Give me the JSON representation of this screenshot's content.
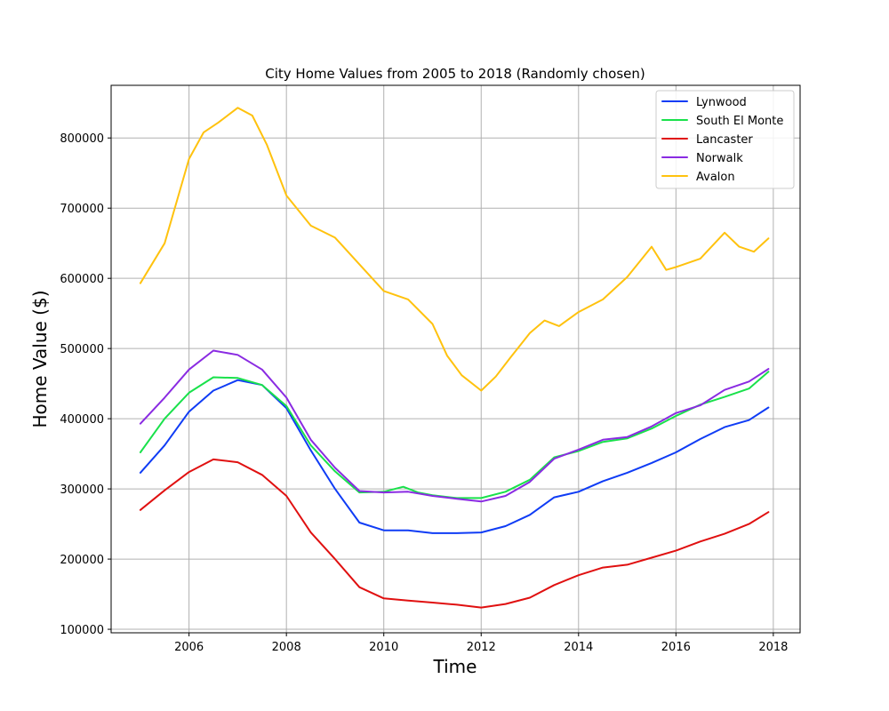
{
  "chart_data": {
    "type": "line",
    "title": "City Home Values from 2005 to 2018 (Randomly chosen)",
    "xlabel": "Time",
    "ylabel": "Home Value ($)",
    "xlim": [
      2004.4,
      2018.55
    ],
    "ylim": [
      95000,
      875000
    ],
    "xticks": [
      2006,
      2008,
      2010,
      2012,
      2014,
      2016,
      2018
    ],
    "xtick_labels": [
      "2006",
      "2008",
      "2010",
      "2012",
      "2014",
      "2016",
      "2018"
    ],
    "yticks": [
      100000,
      200000,
      300000,
      400000,
      500000,
      600000,
      700000,
      800000
    ],
    "ytick_labels": [
      "100000",
      "200000",
      "300000",
      "400000",
      "500000",
      "600000",
      "700000",
      "800000"
    ],
    "grid": true,
    "legend_position": "top-right",
    "series": [
      {
        "name": "Lynwood",
        "color": "#0f3cf5",
        "points": [
          [
            2005.0,
            323000
          ],
          [
            2005.5,
            362000
          ],
          [
            2006.0,
            410000
          ],
          [
            2006.5,
            440000
          ],
          [
            2007.0,
            455000
          ],
          [
            2007.5,
            448000
          ],
          [
            2008.0,
            415000
          ],
          [
            2008.5,
            355000
          ],
          [
            2009.0,
            300000
          ],
          [
            2009.5,
            252000
          ],
          [
            2010.0,
            241000
          ],
          [
            2010.5,
            241000
          ],
          [
            2011.0,
            237000
          ],
          [
            2011.5,
            237000
          ],
          [
            2012.0,
            238000
          ],
          [
            2012.5,
            247000
          ],
          [
            2013.0,
            263000
          ],
          [
            2013.5,
            288000
          ],
          [
            2014.0,
            296000
          ],
          [
            2014.5,
            311000
          ],
          [
            2015.0,
            323000
          ],
          [
            2015.5,
            337000
          ],
          [
            2016.0,
            352000
          ],
          [
            2016.5,
            371000
          ],
          [
            2017.0,
            388000
          ],
          [
            2017.5,
            398000
          ],
          [
            2017.9,
            416000
          ]
        ]
      },
      {
        "name": "South El Monte",
        "color": "#19e14b",
        "points": [
          [
            2005.0,
            352000
          ],
          [
            2005.5,
            400000
          ],
          [
            2006.0,
            437000
          ],
          [
            2006.5,
            459000
          ],
          [
            2007.0,
            458000
          ],
          [
            2007.5,
            448000
          ],
          [
            2008.0,
            418000
          ],
          [
            2008.5,
            362000
          ],
          [
            2009.0,
            325000
          ],
          [
            2009.5,
            295000
          ],
          [
            2010.0,
            296000
          ],
          [
            2010.4,
            303000
          ],
          [
            2010.7,
            295000
          ],
          [
            2011.0,
            291000
          ],
          [
            2011.5,
            287000
          ],
          [
            2012.0,
            287000
          ],
          [
            2012.5,
            296000
          ],
          [
            2013.0,
            313000
          ],
          [
            2013.5,
            345000
          ],
          [
            2014.0,
            354000
          ],
          [
            2014.5,
            367000
          ],
          [
            2015.0,
            372000
          ],
          [
            2015.5,
            386000
          ],
          [
            2016.0,
            404000
          ],
          [
            2016.5,
            420000
          ],
          [
            2017.0,
            431000
          ],
          [
            2017.5,
            443000
          ],
          [
            2017.9,
            467000
          ]
        ]
      },
      {
        "name": "Lancaster",
        "color": "#e01010",
        "points": [
          [
            2005.0,
            270000
          ],
          [
            2005.5,
            298000
          ],
          [
            2006.0,
            324000
          ],
          [
            2006.5,
            342000
          ],
          [
            2007.0,
            338000
          ],
          [
            2007.5,
            320000
          ],
          [
            2008.0,
            290000
          ],
          [
            2008.5,
            238000
          ],
          [
            2009.0,
            200000
          ],
          [
            2009.5,
            160000
          ],
          [
            2010.0,
            144000
          ],
          [
            2010.5,
            141000
          ],
          [
            2011.0,
            138000
          ],
          [
            2011.5,
            135000
          ],
          [
            2012.0,
            131000
          ],
          [
            2012.5,
            136000
          ],
          [
            2013.0,
            145000
          ],
          [
            2013.5,
            163000
          ],
          [
            2014.0,
            177000
          ],
          [
            2014.5,
            188000
          ],
          [
            2015.0,
            192000
          ],
          [
            2015.5,
            202000
          ],
          [
            2016.0,
            212000
          ],
          [
            2016.5,
            225000
          ],
          [
            2017.0,
            236000
          ],
          [
            2017.5,
            250000
          ],
          [
            2017.9,
            267000
          ]
        ]
      },
      {
        "name": "Norwalk",
        "color": "#8a2be2",
        "points": [
          [
            2005.0,
            393000
          ],
          [
            2005.5,
            430000
          ],
          [
            2006.0,
            470000
          ],
          [
            2006.5,
            497000
          ],
          [
            2007.0,
            491000
          ],
          [
            2007.5,
            470000
          ],
          [
            2008.0,
            430000
          ],
          [
            2008.5,
            370000
          ],
          [
            2009.0,
            330000
          ],
          [
            2009.5,
            297000
          ],
          [
            2010.0,
            295000
          ],
          [
            2010.5,
            296000
          ],
          [
            2011.0,
            290000
          ],
          [
            2011.5,
            286000
          ],
          [
            2012.0,
            282000
          ],
          [
            2012.5,
            290000
          ],
          [
            2013.0,
            310000
          ],
          [
            2013.5,
            343000
          ],
          [
            2014.0,
            356000
          ],
          [
            2014.5,
            370000
          ],
          [
            2015.0,
            374000
          ],
          [
            2015.5,
            389000
          ],
          [
            2016.0,
            408000
          ],
          [
            2016.5,
            419000
          ],
          [
            2017.0,
            441000
          ],
          [
            2017.5,
            453000
          ],
          [
            2017.9,
            471000
          ]
        ]
      },
      {
        "name": "Avalon",
        "color": "#ffc20e",
        "points": [
          [
            2005.0,
            593000
          ],
          [
            2005.5,
            650000
          ],
          [
            2006.0,
            770000
          ],
          [
            2006.3,
            808000
          ],
          [
            2006.6,
            822000
          ],
          [
            2007.0,
            843000
          ],
          [
            2007.3,
            832000
          ],
          [
            2007.6,
            790000
          ],
          [
            2008.0,
            718000
          ],
          [
            2008.5,
            675000
          ],
          [
            2009.0,
            658000
          ],
          [
            2009.5,
            620000
          ],
          [
            2010.0,
            582000
          ],
          [
            2010.5,
            570000
          ],
          [
            2011.0,
            535000
          ],
          [
            2011.3,
            490000
          ],
          [
            2011.6,
            462000
          ],
          [
            2012.0,
            440000
          ],
          [
            2012.3,
            460000
          ],
          [
            2012.6,
            487000
          ],
          [
            2013.0,
            522000
          ],
          [
            2013.3,
            540000
          ],
          [
            2013.6,
            532000
          ],
          [
            2014.0,
            552000
          ],
          [
            2014.5,
            570000
          ],
          [
            2015.0,
            602000
          ],
          [
            2015.5,
            645000
          ],
          [
            2015.8,
            612000
          ],
          [
            2016.0,
            616000
          ],
          [
            2016.5,
            628000
          ],
          [
            2017.0,
            665000
          ],
          [
            2017.3,
            645000
          ],
          [
            2017.6,
            638000
          ],
          [
            2017.9,
            657000
          ]
        ]
      }
    ]
  }
}
